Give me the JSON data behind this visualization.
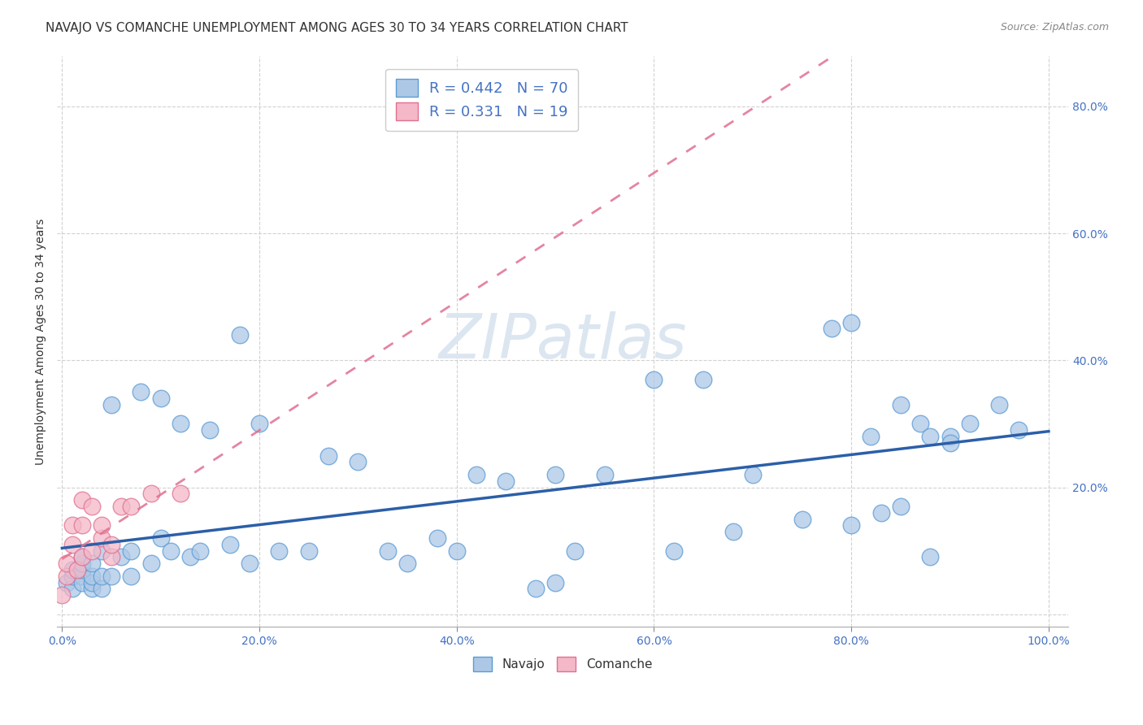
{
  "title": "NAVAJO VS COMANCHE UNEMPLOYMENT AMONG AGES 30 TO 34 YEARS CORRELATION CHART",
  "source": "Source: ZipAtlas.com",
  "ylabel": "Unemployment Among Ages 30 to 34 years",
  "xlim": [
    -0.005,
    1.02
  ],
  "ylim": [
    -0.02,
    0.88
  ],
  "xticks": [
    0.0,
    0.2,
    0.4,
    0.6,
    0.8,
    1.0
  ],
  "xticklabels": [
    "0.0%",
    "20.0%",
    "40.0%",
    "60.0%",
    "80.0%",
    "100.0%"
  ],
  "yticks": [
    0.0,
    0.2,
    0.4,
    0.6,
    0.8
  ],
  "yticklabels_right": [
    "",
    "20.0%",
    "40.0%",
    "60.0%",
    "80.0%"
  ],
  "navajo_color": "#adc8e6",
  "navajo_edge_color": "#5b9bd5",
  "comanche_color": "#f4b8c8",
  "comanche_edge_color": "#e07090",
  "navajo_R": 0.442,
  "navajo_N": 70,
  "comanche_R": 0.331,
  "comanche_N": 19,
  "navajo_x": [
    0.005,
    0.01,
    0.01,
    0.01,
    0.02,
    0.02,
    0.02,
    0.02,
    0.02,
    0.03,
    0.03,
    0.03,
    0.03,
    0.04,
    0.04,
    0.04,
    0.05,
    0.05,
    0.06,
    0.07,
    0.07,
    0.08,
    0.09,
    0.1,
    0.1,
    0.11,
    0.12,
    0.13,
    0.14,
    0.15,
    0.17,
    0.18,
    0.19,
    0.2,
    0.22,
    0.25,
    0.27,
    0.3,
    0.33,
    0.35,
    0.38,
    0.4,
    0.42,
    0.45,
    0.48,
    0.5,
    0.5,
    0.52,
    0.55,
    0.6,
    0.62,
    0.65,
    0.68,
    0.7,
    0.75,
    0.78,
    0.8,
    0.8,
    0.82,
    0.83,
    0.85,
    0.85,
    0.87,
    0.88,
    0.88,
    0.9,
    0.9,
    0.92,
    0.95,
    0.97
  ],
  "navajo_y": [
    0.05,
    0.04,
    0.06,
    0.07,
    0.06,
    0.05,
    0.07,
    0.08,
    0.09,
    0.04,
    0.05,
    0.06,
    0.08,
    0.04,
    0.06,
    0.1,
    0.06,
    0.33,
    0.09,
    0.1,
    0.06,
    0.35,
    0.08,
    0.12,
    0.34,
    0.1,
    0.3,
    0.09,
    0.1,
    0.29,
    0.11,
    0.44,
    0.08,
    0.3,
    0.1,
    0.1,
    0.25,
    0.24,
    0.1,
    0.08,
    0.12,
    0.1,
    0.22,
    0.21,
    0.04,
    0.22,
    0.05,
    0.1,
    0.22,
    0.37,
    0.1,
    0.37,
    0.13,
    0.22,
    0.15,
    0.45,
    0.14,
    0.46,
    0.28,
    0.16,
    0.17,
    0.33,
    0.3,
    0.09,
    0.28,
    0.28,
    0.27,
    0.3,
    0.33,
    0.29
  ],
  "comanche_x": [
    0.0,
    0.005,
    0.005,
    0.01,
    0.01,
    0.015,
    0.02,
    0.02,
    0.02,
    0.03,
    0.03,
    0.04,
    0.04,
    0.05,
    0.05,
    0.06,
    0.07,
    0.09,
    0.12
  ],
  "comanche_y": [
    0.03,
    0.06,
    0.08,
    0.11,
    0.14,
    0.07,
    0.09,
    0.14,
    0.18,
    0.1,
    0.17,
    0.12,
    0.14,
    0.09,
    0.11,
    0.17,
    0.17,
    0.19,
    0.19
  ],
  "navajo_line_color": "#2b5fa8",
  "comanche_line_color": "#e07090",
  "background_color": "#ffffff",
  "grid_color": "#cccccc",
  "title_fontsize": 11,
  "axis_label_fontsize": 10,
  "tick_fontsize": 10,
  "watermark_fontsize": 55
}
